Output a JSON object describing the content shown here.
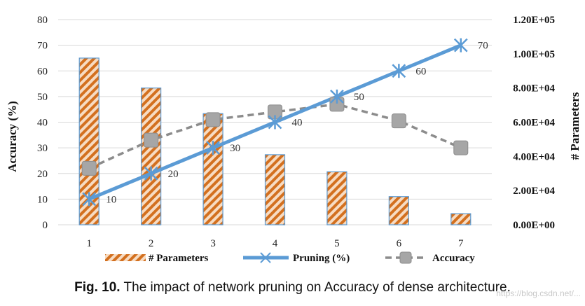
{
  "chart_data": {
    "type": "bar+line",
    "categories": [
      "1",
      "2",
      "3",
      "4",
      "5",
      "6",
      "7"
    ],
    "series": [
      {
        "name": "# Parameters",
        "type": "bar",
        "axis": "right",
        "values": [
          97500,
          80000,
          65000,
          41000,
          31000,
          16500,
          6500
        ]
      },
      {
        "name": "Pruning (%)",
        "type": "line",
        "axis": "left",
        "values": [
          10,
          20,
          30,
          40,
          50,
          60,
          70
        ],
        "labels": [
          "10",
          "20",
          "30",
          "40",
          "50",
          "60",
          "70"
        ]
      },
      {
        "name": "Accuracy",
        "type": "line",
        "axis": "left",
        "style": "dashed",
        "values": [
          22,
          33,
          41,
          44,
          47,
          40.5,
          30
        ]
      }
    ],
    "ylabel": "Accuracy (%)",
    "y2label": "# Parameters",
    "ylim": [
      0,
      80
    ],
    "y2lim": [
      0,
      120000
    ],
    "yticks": [
      "0",
      "10",
      "20",
      "30",
      "40",
      "50",
      "60",
      "70",
      "80"
    ],
    "y2ticks": [
      "0.00E+00",
      "2.00E+04",
      "4.00E+04",
      "6.00E+04",
      "8.00E+04",
      "1.00E+05",
      "1.20E+05"
    ],
    "legend_position": "bottom",
    "colors": {
      "bar_stripe": "#d3701f",
      "bar_fill": "#f7dcc3",
      "bar_edge": "#5b9bd5",
      "pruning": "#5b9bd5",
      "accuracy": "#8c8c8c"
    }
  },
  "caption": {
    "label": "Fig. 10.",
    "text": "The impact of network pruning on Accuracy of dense architecture."
  },
  "watermark": "https://blog.csdn.net/..."
}
